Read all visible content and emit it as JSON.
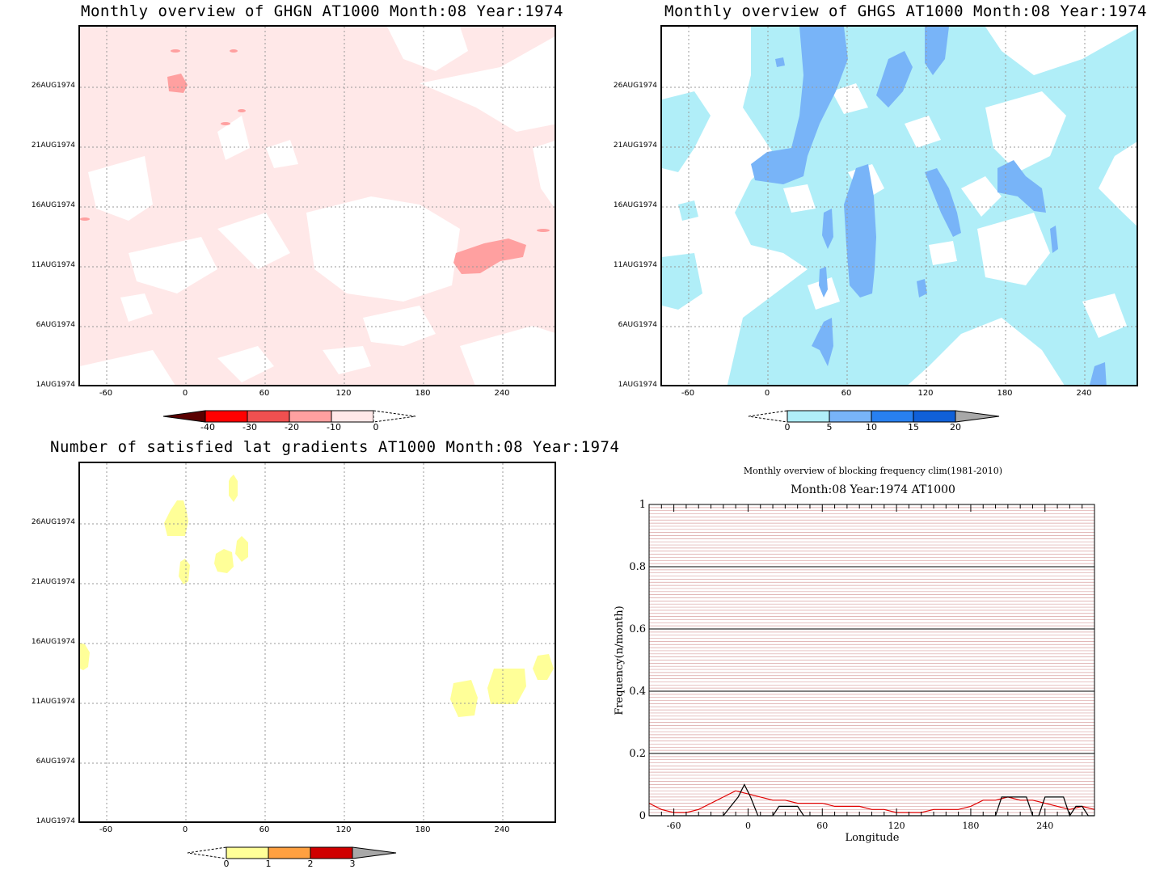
{
  "panels": {
    "ghgn": {
      "title": "Monthly overview of GHGN AT1000 Month:08 Year:1974",
      "y_ticks": [
        "26AUG1974",
        "21AUG1974",
        "16AUG1974",
        "11AUG1974",
        "6AUG1974",
        "1AUG1974"
      ],
      "x_ticks": [
        "-60",
        "0",
        "60",
        "120",
        "180",
        "240"
      ],
      "colorbar_labels": [
        "-40",
        "-30",
        "-20",
        "-10",
        "0"
      ],
      "colors": [
        "#5a0000",
        "#ff0000",
        "#f05050",
        "#ffa0a0",
        "#ffe8e8"
      ]
    },
    "ghgs": {
      "title": "Monthly overview of GHGS AT1000 Month:08 Year:1974",
      "y_ticks": [
        "26AUG1974",
        "21AUG1974",
        "16AUG1974",
        "11AUG1974",
        "6AUG1974",
        "1AUG1974"
      ],
      "x_ticks": [
        "-60",
        "0",
        "60",
        "120",
        "180",
        "240"
      ],
      "colorbar_labels": [
        "0",
        "5",
        "10",
        "15",
        "20"
      ],
      "colors": [
        "#b0eef8",
        "#78b4f8",
        "#2880f0",
        "#1060d8",
        "#a8a8a8"
      ]
    },
    "gradients": {
      "title": "Number of satisfied lat gradients AT1000 Month:08 Year:1974",
      "y_ticks": [
        "26AUG1974",
        "21AUG1974",
        "16AUG1974",
        "11AUG1974",
        "6AUG1974",
        "1AUG1974"
      ],
      "x_ticks": [
        "-60",
        "0",
        "60",
        "120",
        "180",
        "240"
      ],
      "colorbar_labels": [
        "0",
        "1",
        "2",
        "3"
      ],
      "colors": [
        "#ffff98",
        "#ffa040",
        "#d00000",
        "#a8a8a8"
      ]
    },
    "blocking": {
      "title1": "Monthly overview of blocking frequency clim(1981-2010)",
      "title2": "Month:08 Year:1974  AT1000",
      "ylabel": "Frequency(n/month)",
      "xlabel": "Longitude",
      "y_ticks": [
        "1",
        "0.8",
        "0.6",
        "0.4",
        "0.2",
        "0"
      ],
      "x_ticks": [
        "-60",
        "0",
        "60",
        "120",
        "180",
        "240"
      ]
    }
  },
  "chart_data": [
    {
      "type": "heatmap",
      "title": "Monthly overview of GHGN AT1000 Month:08 Year:1974",
      "x_range": [
        -75,
        285
      ],
      "y_range": [
        "1AUG1974",
        "31AUG1974"
      ],
      "legend": [
        -40,
        -30,
        -20,
        -10,
        0
      ],
      "note_values": "field mostly 0 to -10 band with a few -10 to -20 patches"
    },
    {
      "type": "heatmap",
      "title": "Monthly overview of GHGS AT1000 Month:08 Year:1974",
      "x_range": [
        -75,
        285
      ],
      "y_range": [
        "1AUG1974",
        "31AUG1974"
      ],
      "legend": [
        0,
        5,
        10,
        15,
        20
      ]
    },
    {
      "type": "heatmap",
      "title": "Number of satisfied lat gradients AT1000 Month:08 Year:1974",
      "x_range": [
        -75,
        285
      ],
      "y_range": [
        "1AUG1974",
        "31AUG1974"
      ],
      "legend": [
        0,
        1,
        2,
        3
      ]
    },
    {
      "type": "line",
      "title": "Monthly overview of blocking frequency clim(1981-2010)",
      "subtitle": "Month:08 Year:1974  AT1000",
      "xlabel": "Longitude",
      "ylabel": "Frequency(n/month)",
      "xlim": [
        -80,
        280
      ],
      "ylim": [
        0,
        1
      ],
      "series": [
        {
          "color": "#e00000",
          "x": [
            -80,
            -70,
            -60,
            -50,
            -40,
            -30,
            -20,
            -10,
            0,
            10,
            20,
            30,
            40,
            50,
            60,
            70,
            80,
            90,
            100,
            110,
            120,
            130,
            140,
            150,
            160,
            170,
            180,
            190,
            200,
            210,
            220,
            230,
            240,
            250,
            260,
            270,
            280
          ],
          "values": [
            0.04,
            0.02,
            0.01,
            0.01,
            0.02,
            0.04,
            0.06,
            0.08,
            0.07,
            0.06,
            0.05,
            0.05,
            0.04,
            0.04,
            0.04,
            0.03,
            0.03,
            0.03,
            0.02,
            0.02,
            0.01,
            0.01,
            0.01,
            0.02,
            0.02,
            0.02,
            0.03,
            0.05,
            0.05,
            0.06,
            0.05,
            0.05,
            0.04,
            0.03,
            0.02,
            0.03,
            0.02
          ]
        },
        {
          "color": "#000000",
          "x": [
            -80,
            -70,
            -60,
            -50,
            -40,
            -30,
            -20,
            -14,
            -8,
            -3,
            2,
            8,
            20,
            25,
            40,
            45,
            60,
            200,
            205,
            215,
            225,
            230,
            235,
            240,
            245,
            255,
            260,
            265,
            270,
            275,
            280
          ],
          "values": [
            0,
            0,
            0,
            0,
            0,
            0,
            0,
            0.03,
            0.06,
            0.1,
            0.06,
            0,
            0,
            0.03,
            0.03,
            0,
            0,
            0,
            0.06,
            0.06,
            0.06,
            0,
            0,
            0.06,
            0.06,
            0.06,
            0,
            0.03,
            0.03,
            0,
            0
          ]
        }
      ]
    }
  ]
}
